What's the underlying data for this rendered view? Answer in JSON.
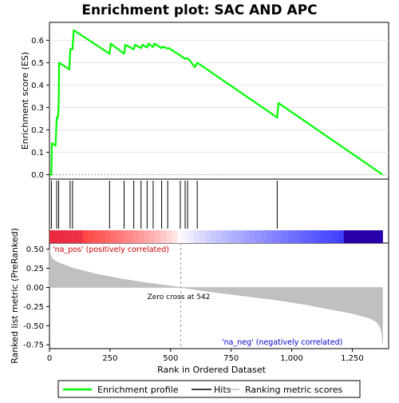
{
  "chart_data": {
    "type": "line",
    "title": "Enrichment plot: SAC AND APC",
    "es_panel": {
      "ylabel": "Enrichment score (ES)",
      "ylim": [
        -0.02,
        0.68
      ],
      "yticks": [
        "0.0",
        "0.1",
        "0.2",
        "0.3",
        "0.4",
        "0.5",
        "0.6"
      ],
      "series": [
        {
          "name": "Enrichment profile",
          "color": "#00ff00",
          "x": [
            0,
            8,
            10,
            25,
            30,
            35,
            38,
            40,
            82,
            86,
            90,
            95,
            100,
            248,
            253,
            308,
            313,
            348,
            353,
            378,
            383,
            403,
            408,
            428,
            433,
            463,
            468,
            488,
            493,
            560,
            565,
            575,
            600,
            610,
            940,
            945,
            1375
          ],
          "y": [
            0.0,
            0.0,
            0.14,
            0.13,
            0.255,
            0.255,
            0.3,
            0.5,
            0.47,
            0.56,
            0.56,
            0.56,
            0.645,
            0.54,
            0.585,
            0.54,
            0.58,
            0.56,
            0.58,
            0.565,
            0.58,
            0.568,
            0.585,
            0.57,
            0.585,
            0.565,
            0.572,
            0.563,
            0.565,
            0.518,
            0.52,
            0.515,
            0.48,
            0.5,
            0.255,
            0.32,
            0.0
          ]
        }
      ]
    },
    "hits": [
      8,
      30,
      38,
      85,
      95,
      248,
      308,
      348,
      378,
      403,
      428,
      463,
      488,
      540,
      560,
      570,
      610,
      940
    ],
    "rank_panel": {
      "ylabel": "Ranked list metric (PreRanked)",
      "xlabel": "Rank in Ordered Dataset",
      "ylim": [
        -0.8,
        0.58
      ],
      "yticks": [
        "0.50",
        "0.25",
        "0.00",
        "-0.25",
        "-0.50",
        "-0.75"
      ],
      "xticks": [
        "0",
        "250",
        "500",
        "750",
        "1,000",
        "1,250"
      ],
      "xlim": [
        0,
        1400
      ],
      "n_ranks": 1375,
      "zero_cross": 542,
      "zero_cross_label": "Zero cross at 542",
      "pos_label": "'na_pos' (positively correlated)",
      "neg_label": "'na_neg' (negatively correlated)",
      "metric_x": [
        0,
        5,
        15,
        40,
        100,
        200,
        300,
        400,
        500,
        542,
        650,
        750,
        850,
        950,
        1050,
        1150,
        1250,
        1320,
        1350,
        1365,
        1372,
        1375
      ],
      "metric_y": [
        0.5,
        0.42,
        0.36,
        0.32,
        0.25,
        0.17,
        0.11,
        0.06,
        0.02,
        0.0,
        -0.05,
        -0.09,
        -0.13,
        -0.17,
        -0.22,
        -0.28,
        -0.34,
        -0.4,
        -0.45,
        -0.52,
        -0.6,
        -0.75
      ]
    },
    "legend": [
      {
        "label": "Enrichment profile",
        "color": "#00ff00"
      },
      {
        "label": "Hits",
        "color": "#000000"
      },
      {
        "label": "Ranking metric scores",
        "color": "#c0c0c0"
      }
    ]
  }
}
